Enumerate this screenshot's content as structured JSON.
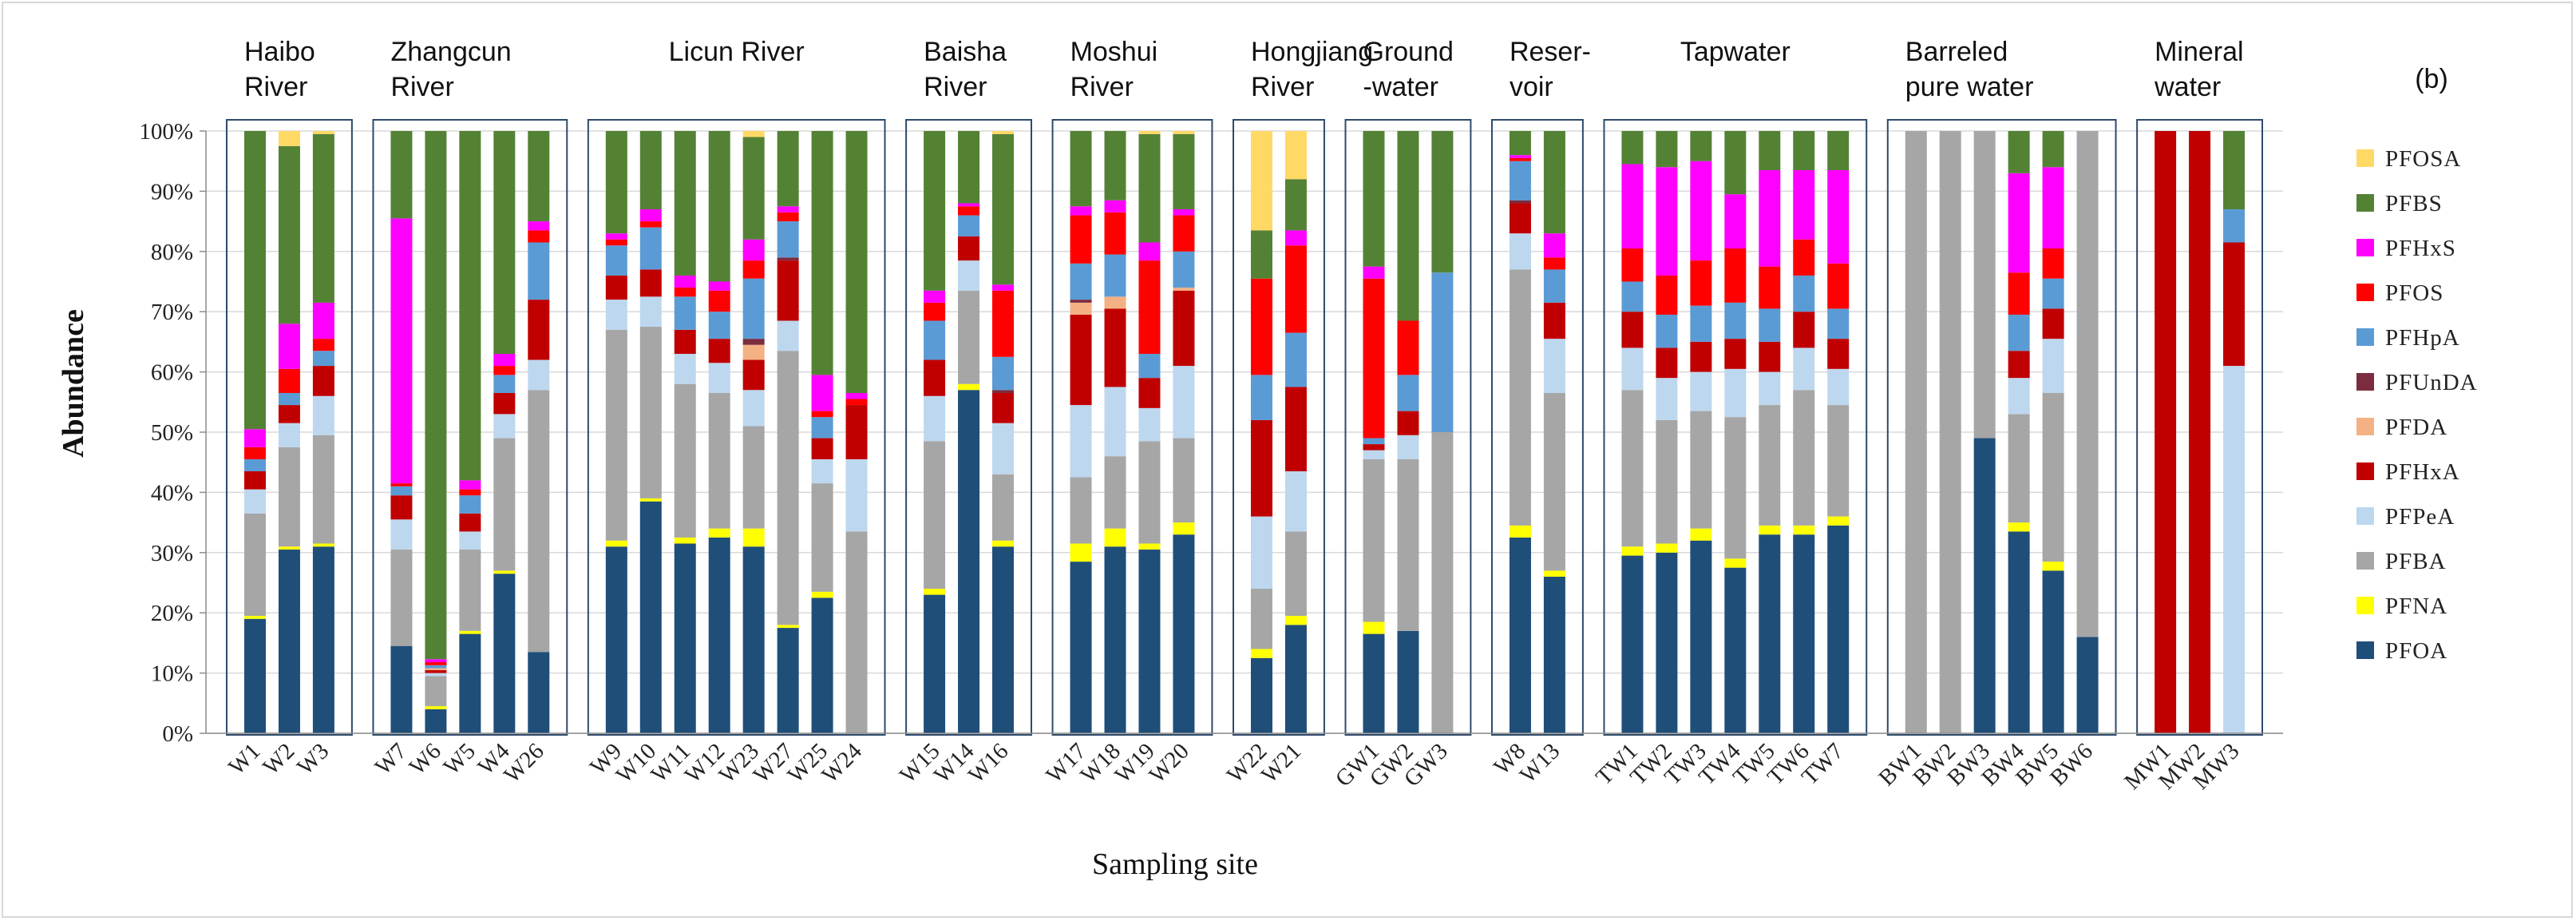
{
  "chart_data": {
    "type": "bar",
    "stacked": true,
    "panel_label": "(b)",
    "ylabel": "Abundance",
    "xlabel": "Sampling site",
    "ylim": [
      0,
      100
    ],
    "y_ticks": [
      "0%",
      "10%",
      "20%",
      "30%",
      "40%",
      "50%",
      "60%",
      "70%",
      "80%",
      "90%",
      "100%"
    ],
    "legend_position": "right",
    "series": [
      {
        "name": "PFOA",
        "color": "#1f4e79"
      },
      {
        "name": "PFNA",
        "color": "#ffff00"
      },
      {
        "name": "PFBA",
        "color": "#a6a6a6"
      },
      {
        "name": "PFPeA",
        "color": "#bdd7ee"
      },
      {
        "name": "PFHxA",
        "color": "#c00000"
      },
      {
        "name": "PFDA",
        "color": "#f4b183"
      },
      {
        "name": "PFUnDA",
        "color": "#7b2c3f"
      },
      {
        "name": "PFHpA",
        "color": "#5b9bd5"
      },
      {
        "name": "PFOS",
        "color": "#ff0000"
      },
      {
        "name": "PFHxS",
        "color": "#ff00ff"
      },
      {
        "name": "PFBS",
        "color": "#548235"
      },
      {
        "name": "PFOSA",
        "color": "#ffd966"
      }
    ],
    "legend_order": [
      "PFOSA",
      "PFBS",
      "PFHxS",
      "PFOS",
      "PFHpA",
      "PFUnDA",
      "PFDA",
      "PFHxA",
      "PFPeA",
      "PFBA",
      "PFNA",
      "PFOA"
    ],
    "groups": [
      {
        "label": [
          "Haibo",
          "River"
        ],
        "sites": [
          {
            "site": "W1",
            "values": [
              19,
              0.5,
              17,
              4,
              3,
              0,
              0,
              2,
              2,
              3,
              49.5,
              0
            ]
          },
          {
            "site": "W2",
            "values": [
              30.5,
              0.5,
              16.5,
              4,
              3,
              0,
              0,
              2,
              4,
              7.5,
              29.5,
              2.5
            ]
          },
          {
            "site": "W3",
            "values": [
              31,
              0.5,
              18,
              6.5,
              5,
              0,
              0,
              2.5,
              2,
              6,
              28,
              0.5
            ]
          }
        ]
      },
      {
        "label": [
          "Zhangcun",
          "River"
        ],
        "sites": [
          {
            "site": "W7",
            "values": [
              14.5,
              0,
              16,
              5,
              4,
              0,
              0,
              1.5,
              0.5,
              44,
              14.5,
              0
            ]
          },
          {
            "site": "W6",
            "values": [
              4,
              0.5,
              5,
              0.5,
              0.5,
              0.3,
              0,
              0.5,
              0.5,
              0.5,
              87.7,
              0
            ]
          },
          {
            "site": "W5",
            "values": [
              16.5,
              0.5,
              13.5,
              3,
              3,
              0,
              0,
              3,
              1,
              1.5,
              58,
              0
            ]
          },
          {
            "site": "W4",
            "values": [
              26.5,
              0.5,
              22,
              4,
              3.5,
              0,
              0,
              3,
              1.5,
              2,
              37,
              0
            ]
          },
          {
            "site": "W26",
            "values": [
              13.5,
              0,
              43.5,
              5,
              10,
              0,
              0,
              9.5,
              2,
              1.5,
              15,
              0
            ]
          }
        ]
      },
      {
        "label": [
          "Licun River"
        ],
        "sites": [
          {
            "site": "W9",
            "values": [
              31,
              1,
              35,
              5,
              4,
              0,
              0,
              5,
              1,
              1,
              17,
              0
            ]
          },
          {
            "site": "W10",
            "values": [
              38.5,
              0.5,
              28.5,
              5,
              4.5,
              0,
              0,
              7,
              1,
              2,
              13,
              0
            ]
          },
          {
            "site": "W11",
            "values": [
              31.5,
              1,
              25.5,
              5,
              4,
              0,
              0,
              5.5,
              1.5,
              2,
              24,
              0
            ]
          },
          {
            "site": "W12",
            "values": [
              32.5,
              1.5,
              22.5,
              5,
              4,
              0,
              0,
              4.5,
              3.5,
              1.5,
              25,
              0
            ]
          },
          {
            "site": "W23",
            "values": [
              31,
              3,
              17,
              6,
              5,
              2.5,
              1,
              10,
              3,
              3.5,
              17,
              1
            ]
          },
          {
            "site": "W27",
            "values": [
              17.5,
              0.5,
              45.5,
              5,
              10,
              0,
              0.5,
              6,
              1.5,
              1,
              12.5,
              0
            ]
          },
          {
            "site": "W25",
            "values": [
              22.5,
              1,
              18,
              4,
              3.5,
              0,
              0,
              3.5,
              1,
              6,
              40.5,
              0
            ]
          },
          {
            "site": "W24",
            "values": [
              0,
              0,
              33.5,
              12,
              9,
              0,
              0,
              0,
              1,
              1,
              43.5,
              0
            ]
          }
        ]
      },
      {
        "label": [
          "Baisha",
          "River"
        ],
        "sites": [
          {
            "site": "W15",
            "values": [
              23,
              1,
              24.5,
              7.5,
              6,
              0,
              0,
              6.5,
              3,
              2,
              26.5,
              0
            ]
          },
          {
            "site": "W14",
            "values": [
              57,
              1,
              15.5,
              5,
              4,
              0,
              0,
              3.5,
              1.5,
              0.5,
              12,
              0
            ]
          },
          {
            "site": "W16",
            "values": [
              31,
              1,
              11,
              8.5,
              5,
              0,
              0.5,
              5.5,
              11,
              1,
              25,
              0.5
            ]
          }
        ]
      },
      {
        "label": [
          "Moshui",
          "River"
        ],
        "sites": [
          {
            "site": "W17",
            "values": [
              28.5,
              3,
              11,
              12,
              15,
              2,
              0.5,
              6,
              8,
              1.5,
              12.5,
              0
            ]
          },
          {
            "site": "W18",
            "values": [
              31,
              3,
              12,
              11.5,
              13,
              2,
              0,
              7,
              7,
              2,
              11.5,
              0
            ]
          },
          {
            "site": "W19",
            "values": [
              30.5,
              1,
              17,
              5.5,
              5,
              0,
              0,
              4,
              15.5,
              3,
              18,
              0.5
            ]
          },
          {
            "site": "W20",
            "values": [
              33,
              2,
              14,
              12,
              12.5,
              0.5,
              0,
              6,
              6,
              1,
              12.5,
              0.5
            ]
          }
        ]
      },
      {
        "label": [
          "Hongjiang",
          "River"
        ],
        "sites": [
          {
            "site": "W22",
            "values": [
              12.5,
              1.5,
              10,
              12,
              16,
              0,
              0,
              7.5,
              16,
              0,
              8,
              16.5
            ]
          },
          {
            "site": "W21",
            "values": [
              18,
              1.5,
              14,
              10,
              14,
              0,
              0,
              9,
              14.5,
              2.5,
              8.5,
              8
            ]
          }
        ]
      },
      {
        "label": [
          "Ground",
          "-water"
        ],
        "sites": [
          {
            "site": "GW1",
            "values": [
              16.5,
              2,
              27,
              1.5,
              1,
              0,
              0,
              1,
              26.5,
              2,
              22.5,
              0
            ]
          },
          {
            "site": "GW2",
            "values": [
              17,
              0,
              28.5,
              4,
              4,
              0,
              0,
              6,
              9,
              0,
              31.5,
              0
            ]
          },
          {
            "site": "GW3",
            "values": [
              0,
              0,
              50,
              0,
              0,
              0,
              0,
              26.5,
              0,
              0,
              23.5,
              0
            ]
          }
        ]
      },
      {
        "label": [
          "Reser-",
          "voir"
        ],
        "sites": [
          {
            "site": "W8",
            "values": [
              32.5,
              2,
              42.5,
              6,
              5,
              0,
              0.5,
              6.5,
              0.5,
              0.5,
              4,
              0
            ]
          },
          {
            "site": "W13",
            "values": [
              26,
              1,
              29.5,
              9,
              6,
              0,
              0,
              5.5,
              2,
              4,
              17,
              0
            ]
          }
        ]
      },
      {
        "label": [
          "Tapwater"
        ],
        "sites": [
          {
            "site": "TW1",
            "values": [
              29.5,
              1.5,
              26,
              7,
              6,
              0,
              0,
              5,
              5.5,
              14,
              5.5,
              0
            ]
          },
          {
            "site": "TW2",
            "values": [
              30,
              1.5,
              20.5,
              7,
              5,
              0,
              0,
              5.5,
              6.5,
              18,
              6,
              0
            ]
          },
          {
            "site": "TW3",
            "values": [
              32,
              2,
              19.5,
              6.5,
              5,
              0,
              0,
              6,
              7.5,
              16.5,
              5,
              0
            ]
          },
          {
            "site": "TW4",
            "values": [
              27.5,
              1.5,
              23.5,
              8,
              5,
              0,
              0,
              6,
              9,
              9,
              10.5,
              0
            ]
          },
          {
            "site": "TW5",
            "values": [
              33,
              1.5,
              20,
              5.5,
              5,
              0,
              0,
              5.5,
              7,
              16,
              6.5,
              0
            ]
          },
          {
            "site": "TW6",
            "values": [
              33,
              1.5,
              22.5,
              7,
              6,
              0,
              0,
              6,
              6,
              11.5,
              6.5,
              0
            ]
          },
          {
            "site": "TW7",
            "values": [
              34.5,
              1.5,
              18.5,
              6,
              5,
              0,
              0,
              5,
              7.5,
              15.5,
              6.5,
              0
            ]
          }
        ]
      },
      {
        "label": [
          "Barreled",
          "pure water"
        ],
        "sites": [
          {
            "site": "BW1",
            "values": [
              0,
              0,
              100,
              0,
              0,
              0,
              0,
              0,
              0,
              0,
              0,
              0
            ]
          },
          {
            "site": "BW2",
            "values": [
              0,
              0,
              100,
              0,
              0,
              0,
              0,
              0,
              0,
              0,
              0,
              0
            ]
          },
          {
            "site": "BW3",
            "values": [
              49,
              0,
              51,
              0,
              0,
              0,
              0,
              0,
              0,
              0,
              0,
              0
            ]
          },
          {
            "site": "BW4",
            "values": [
              33.5,
              1.5,
              18,
              6,
              4.5,
              0,
              0,
              6,
              7,
              16.5,
              7,
              0
            ]
          },
          {
            "site": "BW5",
            "values": [
              27,
              1.5,
              28,
              9,
              5,
              0,
              0,
              5,
              5,
              13.5,
              6,
              0
            ]
          },
          {
            "site": "BW6",
            "values": [
              16,
              0,
              84,
              0,
              0,
              0,
              0,
              0,
              0,
              0,
              0,
              0
            ]
          }
        ]
      },
      {
        "label": [
          "Mineral",
          "water"
        ],
        "sites": [
          {
            "site": "MW1",
            "values": [
              0,
              0,
              0,
              0,
              100,
              0,
              0,
              0,
              0,
              0,
              0,
              0
            ]
          },
          {
            "site": "MW2",
            "values": [
              0,
              0,
              0,
              0,
              100,
              0,
              0,
              0,
              0,
              0,
              0,
              0
            ]
          },
          {
            "site": "MW3",
            "values": [
              0,
              0,
              0,
              61,
              20.5,
              0,
              0,
              5.5,
              0,
              0,
              13,
              0
            ]
          }
        ]
      }
    ]
  }
}
